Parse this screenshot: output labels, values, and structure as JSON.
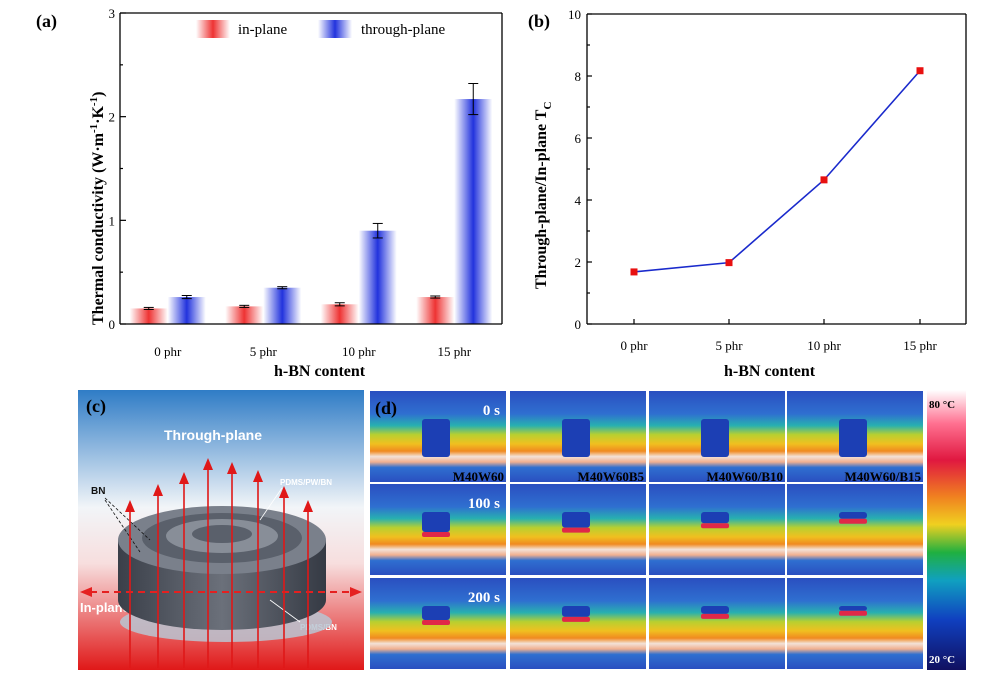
{
  "colors": {
    "inplane": "#ee3333",
    "throughplane": "#2233dd",
    "line": "#1a2acc",
    "marker": "#e81010"
  },
  "panel_labels": {
    "a": "(a)",
    "b": "(b)",
    "c": "(c)",
    "d": "(d)"
  },
  "chart_data": [
    {
      "type": "bar",
      "panel": "(a)",
      "categories": [
        "0 phr",
        "5 phr",
        "10 phr",
        "15 phr"
      ],
      "series": [
        {
          "name": "in-plane",
          "values": [
            0.15,
            0.17,
            0.19,
            0.26
          ],
          "errors": [
            0.01,
            0.01,
            0.015,
            0.01
          ]
        },
        {
          "name": "through-plane",
          "values": [
            0.26,
            0.35,
            0.9,
            2.17
          ],
          "errors": [
            0.015,
            0.01,
            0.07,
            0.15
          ]
        }
      ],
      "xlabel": "h-BN content",
      "ylabel": "Thermal conductivity (W·m-1·K-1)",
      "ylabel_main": "Thermal conductivity (W·m",
      "ylabel_sup1": "-1",
      "ylabel_mid": "·K",
      "ylabel_sup2": "-1",
      "ylabel_end": ")",
      "ylim": [
        0,
        3
      ],
      "yticks": [
        0,
        1,
        2,
        3
      ],
      "legend_position": "top"
    },
    {
      "type": "line",
      "panel": "(b)",
      "categories": [
        "0 phr",
        "5 phr",
        "10 phr",
        "15 phr"
      ],
      "values": [
        1.68,
        1.98,
        4.65,
        8.17
      ],
      "xlabel": "h-BN content",
      "ylabel": "Through-plane/In-plane TC",
      "ylabel_main": "Through-plane/In-plane T",
      "ylabel_sub": "C",
      "ylim": [
        0,
        10
      ],
      "yticks": [
        0,
        2,
        4,
        6,
        8,
        10
      ]
    }
  ],
  "schematic": {
    "through_label": "Through-plane",
    "inplane_label": "In-plane",
    "bn_label": "BN",
    "pdms_pw_bn_label": "PDMS/PW/BN",
    "pdms_bn_label": "PDMS/BN"
  },
  "thermal": {
    "times": [
      "0 s",
      "100 s",
      "200 s"
    ],
    "samples": [
      "M40W60",
      "M40W60B5",
      "M40W60/B10",
      "M40W60/B15"
    ],
    "scale_max": "80 °C",
    "scale_min": "20 °C"
  }
}
